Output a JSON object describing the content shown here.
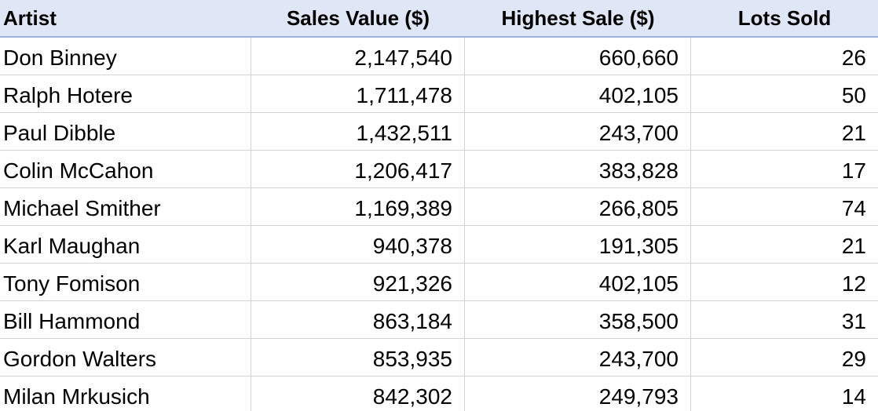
{
  "table": {
    "header": [
      "Artist",
      "Sales Value ($)",
      "Highest Sale ($)",
      "Lots Sold"
    ],
    "rows": [
      [
        "Don Binney",
        "2,147,540",
        "660,660",
        "26"
      ],
      [
        "Ralph Hotere",
        "1,711,478",
        "402,105",
        "50"
      ],
      [
        "Paul Dibble",
        "1,432,511",
        "243,700",
        "21"
      ],
      [
        "Colin McCahon",
        "1,206,417",
        "383,828",
        "17"
      ],
      [
        "Michael Smither",
        "1,169,389",
        "266,805",
        "74"
      ],
      [
        "Karl Maughan",
        "940,378",
        "191,305",
        "21"
      ],
      [
        "Tony Fomison",
        "921,326",
        "402,105",
        "12"
      ],
      [
        "Bill Hammond",
        "863,184",
        "358,500",
        "31"
      ],
      [
        "Gordon Walters",
        "853,935",
        "243,700",
        "29"
      ],
      [
        "Milan Mrkusich",
        "842,302",
        "249,793",
        "14"
      ]
    ]
  }
}
